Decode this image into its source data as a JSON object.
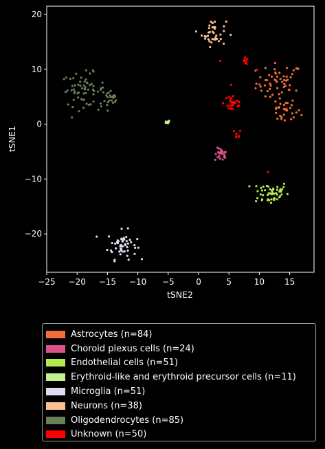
{
  "chart_data": {
    "type": "scatter",
    "xlabel": "tSNE2",
    "ylabel": "tSNE1",
    "xlim": [
      -25,
      19
    ],
    "ylim": [
      -27,
      21.5
    ],
    "xticks": [
      -25,
      -20,
      -15,
      -10,
      -5,
      0,
      5,
      10,
      15
    ],
    "yticks": [
      -20,
      -10,
      0,
      10,
      20
    ],
    "grid": false,
    "legend_position": "below",
    "series": [
      {
        "name": "Astrocytes (n=84)",
        "color": "#f26d35",
        "clusters": [
          {
            "cx": 13.3,
            "cy": 7.5,
            "sx": 1.9,
            "sy": 1.8,
            "n": 58
          },
          {
            "cx": 14.2,
            "cy": 2.2,
            "sx": 1.3,
            "sy": 1.0,
            "n": 26
          }
        ]
      },
      {
        "name": "Choroid plexus cells (n=24)",
        "color": "#d9538a",
        "clusters": [
          {
            "cx": 3.7,
            "cy": -5.6,
            "sx": 0.5,
            "sy": 0.6,
            "n": 24
          }
        ]
      },
      {
        "name": "Endothelial cells (n=51)",
        "color": "#b2ea50",
        "clusters": [
          {
            "cx": 11.8,
            "cy": -12.5,
            "sx": 1.5,
            "sy": 1.1,
            "n": 51
          }
        ]
      },
      {
        "name": "Erythroid-like and erythroid precursor cells (n=11)",
        "color": "#c2f290",
        "clusters": [
          {
            "cx": -5.1,
            "cy": 0.4,
            "sx": 0.15,
            "sy": 0.15,
            "n": 11
          }
        ]
      },
      {
        "name": "Microglia (n=51)",
        "color": "#dedcf0",
        "clusters": [
          {
            "cx": -12.6,
            "cy": -22.0,
            "sx": 1.2,
            "sy": 1.3,
            "n": 51
          }
        ]
      },
      {
        "name": "Neurons (n=38)",
        "color": "#fbbf91",
        "clusters": [
          {
            "cx": 2.5,
            "cy": 16.6,
            "sx": 1.0,
            "sy": 1.2,
            "n": 38
          }
        ]
      },
      {
        "name": "Oligodendrocytes (n=85)",
        "color": "#6b7f57",
        "clusters": [
          {
            "cx": -19.0,
            "cy": 6.3,
            "sx": 1.8,
            "sy": 1.5,
            "n": 62
          },
          {
            "cx": -14.7,
            "cy": 4.3,
            "sx": 0.9,
            "sy": 0.9,
            "n": 23
          }
        ]
      },
      {
        "name": "Unknown (n=50)",
        "color": "#ff0000",
        "clusters": [
          {
            "cx": 5.7,
            "cy": 3.9,
            "sx": 0.8,
            "sy": 1.0,
            "n": 30
          },
          {
            "cx": 7.7,
            "cy": 11.5,
            "sx": 0.25,
            "sy": 0.3,
            "n": 10
          },
          {
            "cx": 6.2,
            "cy": -2.0,
            "sx": 0.4,
            "sy": 0.5,
            "n": 7
          },
          {
            "cx": 11.5,
            "cy": -8.8,
            "sx": 0.1,
            "sy": 0.1,
            "n": 1
          },
          {
            "cx": 3.5,
            "cy": 11.5,
            "sx": 0.1,
            "sy": 0.1,
            "n": 1
          },
          {
            "cx": 9.5,
            "cy": 9.8,
            "sx": 0.1,
            "sy": 0.1,
            "n": 1
          }
        ]
      }
    ]
  }
}
